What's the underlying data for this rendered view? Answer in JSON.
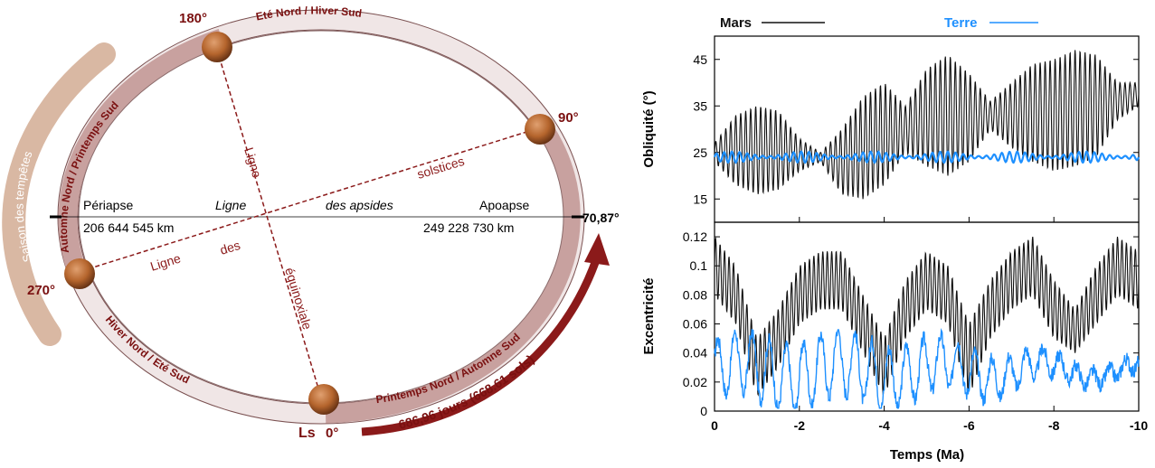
{
  "orbit": {
    "deg_180": "180°",
    "deg_90": "90°",
    "deg_270": "270°",
    "ls_label": "Ls",
    "ls_zero": "0°",
    "deg_70": "70,87°",
    "season_storms": "Saison des tempêtes",
    "top_season": "Eté Nord / Hiver Sud",
    "left_season": "Automne Nord / Printemps Sud",
    "bottom_left_season": "Hiver Nord / Eté Sud",
    "bottom_right_season": "Printemps Nord / Automne Sud",
    "periapse": "Périapse",
    "periapse_dist": "206 644 545 km",
    "apoapse": "Apoapse",
    "apoapse_dist": "249 228 730 km",
    "ligne_apsides_1": "Ligne",
    "ligne_apsides_2": "des apsides",
    "solstices_1": "Ligne",
    "solstices_2": "solstices",
    "equinox_1": "Ligne",
    "equinox_2": "des",
    "equinox_3": "équinoxiale",
    "period": "686,96 jours (668.61 sols)",
    "colors": {
      "ring": "#c8a19f",
      "accent": "#8b1a1a",
      "storm": "#d9b8a3"
    }
  },
  "charts": {
    "legend_mars": "Mars",
    "legend_terre": "Terre",
    "colors": {
      "mars": "#111111",
      "terre": "#1e90ff"
    }
  },
  "chart_data": [
    {
      "type": "line",
      "ylabel": "Obliquité (°)",
      "xlim": [
        0,
        -10
      ],
      "ylim": [
        10,
        50
      ],
      "yticks": [
        "45",
        "35",
        "25",
        "15"
      ],
      "ytick_values": [
        45,
        35,
        25,
        15
      ],
      "series": [
        {
          "name": "Mars",
          "envelope_x": [
            0,
            -0.5,
            -1,
            -1.5,
            -2,
            -2.5,
            -3,
            -3.5,
            -4,
            -4.5,
            -5,
            -5.5,
            -6,
            -6.5,
            -7,
            -7.5,
            -8,
            -8.5,
            -9,
            -9.5,
            -10
          ],
          "max": [
            27,
            33,
            35,
            34,
            28,
            25,
            30,
            37,
            40,
            35,
            43,
            46,
            42,
            36,
            40,
            44,
            45,
            47,
            46,
            40,
            40
          ],
          "min": [
            23,
            18,
            16,
            17,
            21,
            23,
            16,
            15,
            18,
            25,
            22,
            20,
            23,
            30,
            26,
            23,
            21,
            22,
            24,
            32,
            35
          ]
        },
        {
          "name": "Terre",
          "center": 24,
          "amplitude": 1.2
        }
      ]
    },
    {
      "type": "line",
      "ylabel": "Excentricité",
      "xlabel": "Temps (Ma)",
      "xlim": [
        0,
        -10
      ],
      "ylim": [
        0,
        0.13
      ],
      "xticks": [
        "0",
        "-2",
        "-4",
        "-6",
        "-8",
        "-10"
      ],
      "xtick_values": [
        0,
        -2,
        -4,
        -6,
        -8,
        -10
      ],
      "yticks": [
        "0.12",
        "0.1",
        "0.08",
        "0.06",
        "0.04",
        "0.02",
        "0"
      ],
      "ytick_values": [
        0.12,
        0.1,
        0.08,
        0.06,
        0.04,
        0.02,
        0
      ],
      "series": [
        {
          "name": "Mars",
          "envelope_x": [
            0,
            -0.5,
            -1,
            -1.5,
            -2,
            -2.5,
            -3,
            -3.5,
            -4,
            -4.5,
            -5,
            -5.5,
            -6,
            -6.5,
            -7,
            -7.5,
            -8,
            -8.5,
            -9,
            -9.5,
            -10
          ],
          "max": [
            0.12,
            0.1,
            0.05,
            0.07,
            0.1,
            0.11,
            0.11,
            0.08,
            0.05,
            0.09,
            0.11,
            0.1,
            0.06,
            0.09,
            0.11,
            0.12,
            0.09,
            0.07,
            0.1,
            0.12,
            0.11
          ],
          "min": [
            0.08,
            0.06,
            0.01,
            0.03,
            0.06,
            0.07,
            0.07,
            0.04,
            0.01,
            0.05,
            0.07,
            0.06,
            0.01,
            0.05,
            0.07,
            0.08,
            0.05,
            0.04,
            0.06,
            0.08,
            0.07
          ]
        },
        {
          "name": "Terre",
          "mean": 0.028,
          "range": [
            0.002,
            0.056
          ]
        }
      ]
    }
  ]
}
